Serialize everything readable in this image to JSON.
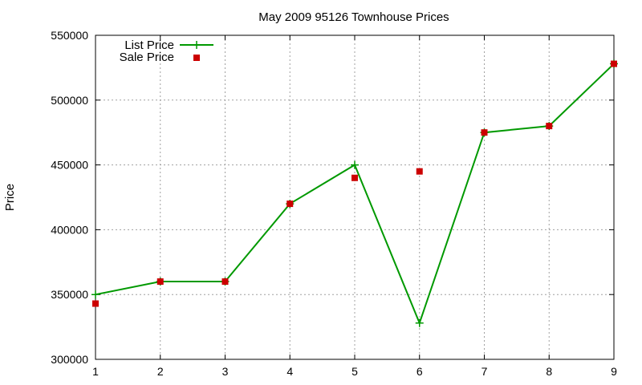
{
  "chart_data": {
    "type": "line",
    "title": "May 2009 95126 Townhouse Prices",
    "xlabel": "",
    "ylabel": "Price",
    "x": [
      1,
      2,
      3,
      4,
      5,
      6,
      7,
      8,
      9
    ],
    "xlim": [
      1,
      9
    ],
    "ylim": [
      300000,
      550000
    ],
    "xticks": [
      "1",
      "2",
      "3",
      "4",
      "5",
      "6",
      "7",
      "8",
      "9"
    ],
    "yticks": [
      "300000",
      "350000",
      "400000",
      "450000",
      "500000",
      "550000"
    ],
    "grid": true,
    "legend_position": "top-left",
    "series": [
      {
        "name": "List Price",
        "style": "line-with-plus-markers",
        "color": "#009900",
        "values": [
          350000,
          360000,
          360000,
          420000,
          450000,
          328000,
          475000,
          480000,
          528000
        ]
      },
      {
        "name": "Sale Price",
        "style": "square-markers",
        "color": "#cc0000",
        "values": [
          343000,
          360000,
          360000,
          420000,
          440000,
          445000,
          475000,
          480000,
          528000
        ]
      }
    ]
  }
}
